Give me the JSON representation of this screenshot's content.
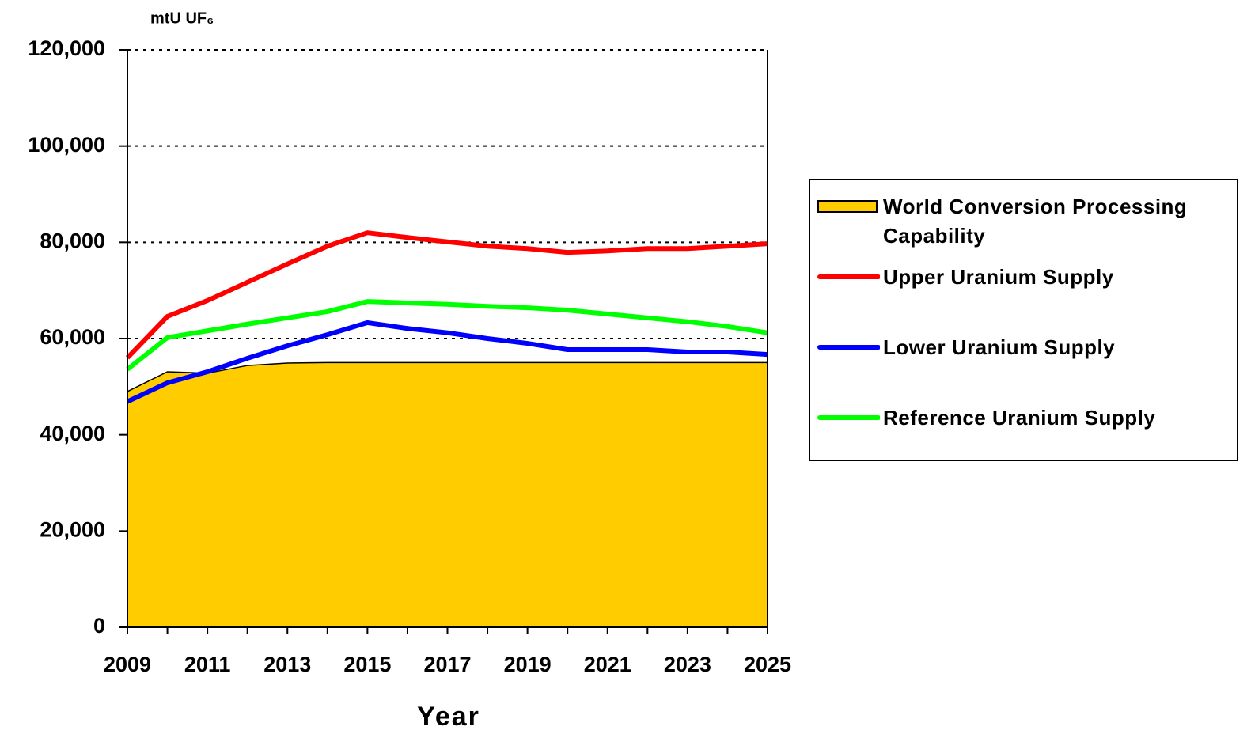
{
  "chart_data": {
    "type": "line",
    "y_axis_label": "mtU UF₆",
    "x_axis_label": "Year",
    "x": [
      2009,
      2010,
      2011,
      2012,
      2013,
      2014,
      2015,
      2016,
      2017,
      2018,
      2019,
      2020,
      2021,
      2022,
      2023,
      2024,
      2025
    ],
    "xlim": [
      2009,
      2025
    ],
    "xticks": [
      2009,
      2011,
      2013,
      2015,
      2017,
      2019,
      2021,
      2023,
      2025
    ],
    "ylim": [
      0,
      120000
    ],
    "yticks": [
      0,
      {
        "value": 20000,
        "label": "20,000"
      },
      {
        "value": 40000,
        "label": "40,000"
      },
      {
        "value": 60000,
        "label": "60,000"
      },
      {
        "value": 80000,
        "label": "80,000"
      },
      {
        "value": 100000,
        "label": "100,000"
      },
      {
        "value": 120000,
        "label": "120,000"
      }
    ],
    "grid": true,
    "legend": "right",
    "series": [
      {
        "name": "World Conversion Processing Capability",
        "type": "area",
        "color": "#ffcc00",
        "values": [
          49000,
          53100,
          52800,
          54400,
          54900,
          55000,
          55000,
          55000,
          55000,
          55000,
          55000,
          55000,
          55000,
          55000,
          55000,
          55000,
          55000
        ]
      },
      {
        "name": "Upper Uranium Supply",
        "type": "line",
        "color": "#ff0000",
        "values": [
          56000,
          64600,
          67900,
          71700,
          75500,
          79200,
          82000,
          81000,
          80100,
          79200,
          78700,
          77900,
          78200,
          78700,
          78700,
          79200,
          79700
        ]
      },
      {
        "name": "Lower Uranium Supply",
        "type": "line",
        "color": "#0000ff",
        "values": [
          46900,
          50800,
          53100,
          55900,
          58500,
          60800,
          63300,
          62100,
          61200,
          60000,
          59000,
          57700,
          57700,
          57700,
          57200,
          57200,
          56700
        ]
      },
      {
        "name": "Reference Uranium Supply",
        "type": "line",
        "color": "#00ff00",
        "values": [
          53600,
          60200,
          61600,
          63000,
          64300,
          65600,
          67700,
          67400,
          67100,
          66700,
          66400,
          65900,
          65100,
          64300,
          63500,
          62500,
          61200
        ]
      }
    ]
  }
}
